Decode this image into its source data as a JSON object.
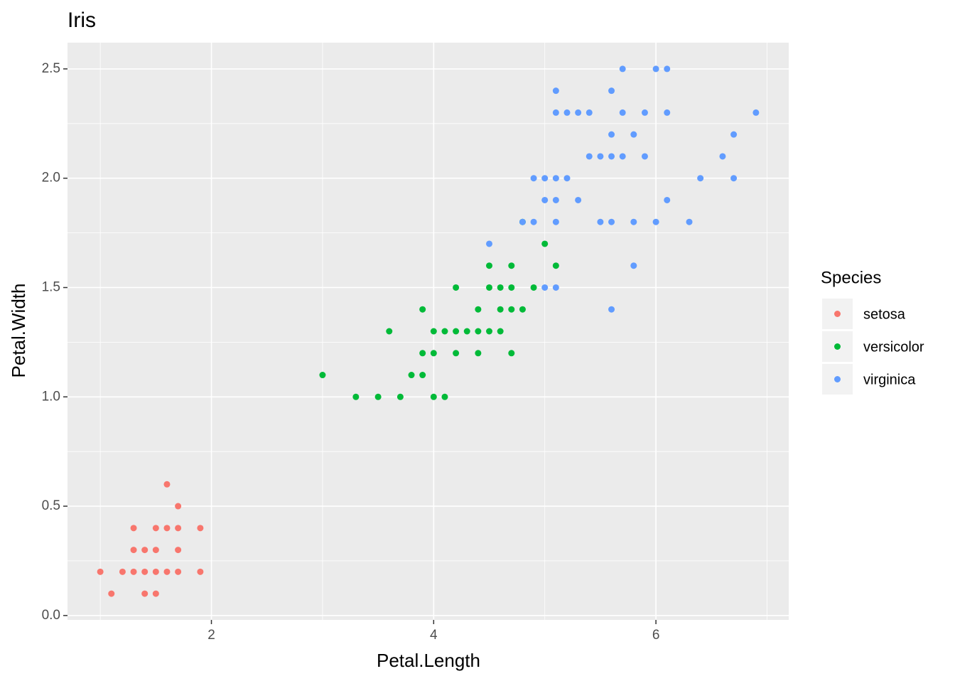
{
  "chart_data": {
    "type": "scatter",
    "title": "Iris",
    "x_label": "Petal.Length",
    "y_label": "Petal.Width",
    "xlim": [
      0.705,
      7.195
    ],
    "ylim": [
      -0.02,
      2.62
    ],
    "xticks": [
      2,
      4,
      6
    ],
    "x_minor_ticks": [
      1,
      3,
      5,
      7
    ],
    "yticks": [
      {
        "value": 0,
        "label": "0.0"
      },
      {
        "value": 0.5,
        "label": "0.5"
      },
      {
        "value": 1,
        "label": "1.0"
      },
      {
        "value": 1.5,
        "label": "1.5"
      },
      {
        "value": 2,
        "label": "2.0"
      },
      {
        "value": 2.5,
        "label": "2.5"
      }
    ],
    "y_minor_ticks": [
      0.25,
      0.75,
      1.25,
      1.75,
      2.25
    ],
    "grid": true,
    "legend_title": "Species",
    "legend_position": "right",
    "series": [
      {
        "name": "setosa",
        "color": "#F8766D",
        "x": [
          1.0,
          1.1,
          1.2,
          1.3,
          1.3,
          1.3,
          1.4,
          1.4,
          1.4,
          1.5,
          1.5,
          1.5,
          1.5,
          1.6,
          1.6,
          1.6,
          1.7,
          1.7,
          1.7,
          1.7,
          1.9,
          1.9
        ],
        "values": [
          0.2,
          0.1,
          0.2,
          0.2,
          0.3,
          0.4,
          0.1,
          0.2,
          0.3,
          0.1,
          0.2,
          0.3,
          0.4,
          0.2,
          0.4,
          0.6,
          0.2,
          0.3,
          0.4,
          0.5,
          0.2,
          0.4
        ]
      },
      {
        "name": "versicolor",
        "color": "#00BA38",
        "x": [
          3.0,
          3.3,
          3.5,
          3.6,
          3.7,
          3.8,
          3.9,
          3.9,
          3.9,
          4.0,
          4.0,
          4.0,
          4.1,
          4.1,
          4.2,
          4.2,
          4.2,
          4.3,
          4.4,
          4.4,
          4.4,
          4.5,
          4.5,
          4.5,
          4.6,
          4.6,
          4.6,
          4.7,
          4.7,
          4.7,
          4.7,
          4.8,
          4.8,
          4.9,
          5.0,
          5.1
        ],
        "values": [
          1.1,
          1.0,
          1.0,
          1.3,
          1.0,
          1.1,
          1.1,
          1.2,
          1.4,
          1.0,
          1.2,
          1.3,
          1.0,
          1.3,
          1.2,
          1.3,
          1.5,
          1.3,
          1.2,
          1.3,
          1.4,
          1.3,
          1.5,
          1.6,
          1.3,
          1.4,
          1.5,
          1.2,
          1.4,
          1.5,
          1.6,
          1.4,
          1.8,
          1.5,
          1.7,
          1.6
        ]
      },
      {
        "name": "virginica",
        "color": "#619CFF",
        "x": [
          4.5,
          4.8,
          4.9,
          4.9,
          5.0,
          5.0,
          5.0,
          5.1,
          5.1,
          5.1,
          5.1,
          5.1,
          5.1,
          5.2,
          5.2,
          5.3,
          5.3,
          5.4,
          5.4,
          5.5,
          5.5,
          5.6,
          5.6,
          5.6,
          5.6,
          5.6,
          5.7,
          5.7,
          5.7,
          5.8,
          5.8,
          5.8,
          5.9,
          5.9,
          6.0,
          6.0,
          6.1,
          6.1,
          6.1,
          6.3,
          6.4,
          6.6,
          6.7,
          6.7,
          6.9
        ],
        "values": [
          1.7,
          1.8,
          1.8,
          2.0,
          1.5,
          1.9,
          2.0,
          1.5,
          1.8,
          1.9,
          2.0,
          2.3,
          2.4,
          2.0,
          2.3,
          1.9,
          2.3,
          2.1,
          2.3,
          1.8,
          2.1,
          1.4,
          1.8,
          2.1,
          2.2,
          2.4,
          2.1,
          2.3,
          2.5,
          1.6,
          1.8,
          2.2,
          2.1,
          2.3,
          1.8,
          2.5,
          1.9,
          2.3,
          2.5,
          1.8,
          2.0,
          2.1,
          2.0,
          2.2,
          2.3
        ]
      }
    ]
  }
}
